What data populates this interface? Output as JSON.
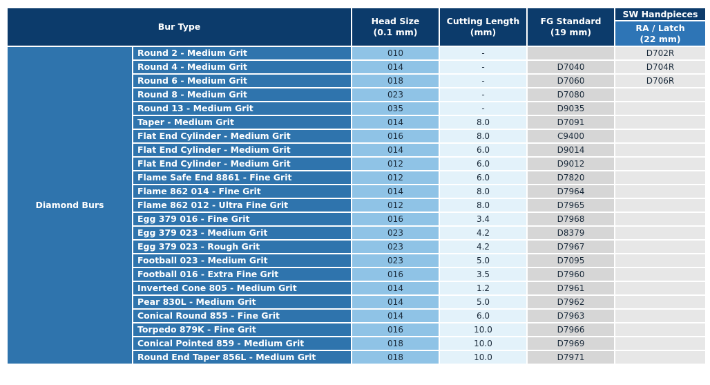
{
  "header": {
    "bur_type": "Bur Type",
    "head_size": "Head Size\n(0.1 mm)",
    "cutting_length": "Cutting Length\n(mm)",
    "fg_standard": "FG Standard\n(19 mm)",
    "sw_handpieces": "SW Handpieces",
    "ra_latch": "RA / Latch\n(22 mm)"
  },
  "group_label": "Diamond Burs",
  "rows": [
    {
      "type": "Round 2 - Medium Grit",
      "head": "010",
      "cut": "-",
      "fg": "",
      "ra": "D702R"
    },
    {
      "type": "Round 4 - Medium Grit",
      "head": "014",
      "cut": "-",
      "fg": "D7040",
      "ra": "D704R"
    },
    {
      "type": "Round 6 - Medium Grit",
      "head": "018",
      "cut": "-",
      "fg": "D7060",
      "ra": "D706R"
    },
    {
      "type": "Round 8 - Medium Grit",
      "head": "023",
      "cut": "-",
      "fg": "D7080",
      "ra": ""
    },
    {
      "type": "Round 13 - Medium Grit",
      "head": "035",
      "cut": "-",
      "fg": "D9035",
      "ra": ""
    },
    {
      "type": "Taper - Medium Grit",
      "head": "014",
      "cut": "8.0",
      "fg": "D7091",
      "ra": ""
    },
    {
      "type": "Flat End Cylinder - Medium Grit",
      "head": "016",
      "cut": "8.0",
      "fg": "C9400",
      "ra": ""
    },
    {
      "type": "Flat End Cylinder - Medium Grit",
      "head": "014",
      "cut": "6.0",
      "fg": "D9014",
      "ra": ""
    },
    {
      "type": "Flat End Cylinder - Medium Grit",
      "head": "012",
      "cut": "6.0",
      "fg": "D9012",
      "ra": ""
    },
    {
      "type": "Flame Safe End 8861 - Fine Grit",
      "head": "012",
      "cut": "6.0",
      "fg": "D7820",
      "ra": ""
    },
    {
      "type": "Flame 862 014 - Fine Grit",
      "head": "014",
      "cut": "8.0",
      "fg": "D7964",
      "ra": ""
    },
    {
      "type": "Flame 862 012 - Ultra Fine Grit",
      "head": "012",
      "cut": "8.0",
      "fg": "D7965",
      "ra": ""
    },
    {
      "type": "Egg 379 016 - Fine Grit",
      "head": "016",
      "cut": "3.4",
      "fg": "D7968",
      "ra": ""
    },
    {
      "type": "Egg 379 023 - Medium Grit",
      "head": "023",
      "cut": "4.2",
      "fg": "D8379",
      "ra": ""
    },
    {
      "type": "Egg 379 023 - Rough Grit",
      "head": "023",
      "cut": "4.2",
      "fg": "D7967",
      "ra": ""
    },
    {
      "type": "Football 023 - Medium Grit",
      "head": "023",
      "cut": "5.0",
      "fg": "D7095",
      "ra": ""
    },
    {
      "type": "Football 016 - Extra Fine Grit",
      "head": "016",
      "cut": "3.5",
      "fg": "D7960",
      "ra": ""
    },
    {
      "type": "Inverted Cone 805 - Medium Grit",
      "head": "014",
      "cut": "1.2",
      "fg": "D7961",
      "ra": ""
    },
    {
      "type": "Pear 830L - Medium Grit",
      "head": "014",
      "cut": "5.0",
      "fg": "D7962",
      "ra": ""
    },
    {
      "type": "Conical Round 855 - Fine Grit",
      "head": "014",
      "cut": "6.0",
      "fg": "D7963",
      "ra": ""
    },
    {
      "type": "Torpedo 879K - Fine Grit",
      "head": "016",
      "cut": "10.0",
      "fg": "D7966",
      "ra": ""
    },
    {
      "type": "Conical Pointed 859 - Medium Grit",
      "head": "018",
      "cut": "10.0",
      "fg": "D7969",
      "ra": ""
    },
    {
      "type": "Round End Taper 856L - Medium Grit",
      "head": "018",
      "cut": "10.0",
      "fg": "D7971",
      "ra": ""
    }
  ],
  "colors": {
    "header_navy": "#0c3b6b",
    "row_blue": "#2f74ad",
    "head_size_fill": "#8fc3e6",
    "cutting_fill": "#e3f2fa",
    "fg_fill": "#d6d6d6",
    "ra_fill": "#e7e7e7"
  }
}
